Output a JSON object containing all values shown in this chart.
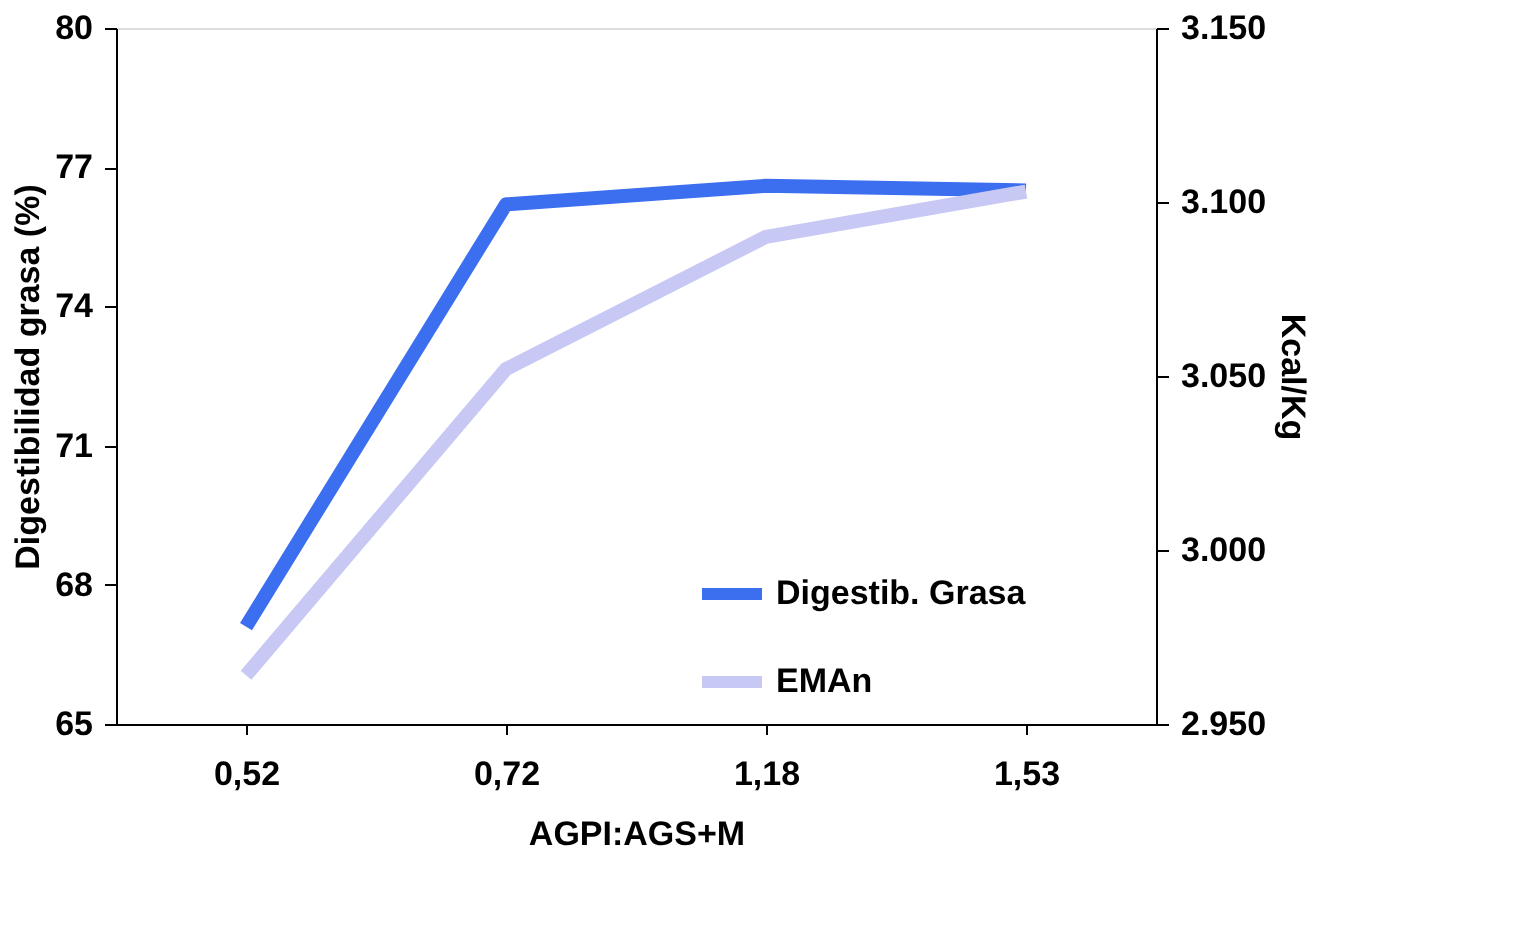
{
  "chart_data": {
    "type": "line",
    "xlabel": "AGPI:AGS+M",
    "ylabel": "Digestibilidad grasa (%)",
    "y2label": "Kcal/Kg",
    "categories": [
      "0,52",
      "0,72",
      "1,18",
      "1,53"
    ],
    "series": [
      {
        "name": "Digestib. Grasa",
        "color": "#3c6ef0",
        "values": [
          67.1,
          76.2,
          76.6,
          76.5
        ]
      },
      {
        "name": "EMAn",
        "color": "#c8c8f5",
        "values": [
          2964,
          3052,
          3090,
          3103
        ],
        "axis": "y2"
      }
    ],
    "ylim": [
      65,
      80
    ],
    "yticks": [
      65,
      68,
      71,
      74,
      77,
      80
    ],
    "y2lim": [
      2950,
      3150
    ],
    "y2ticks": [
      {
        "value": 2950,
        "label": "2.950"
      },
      {
        "value": 3000,
        "label": "3.000"
      },
      {
        "value": 3050,
        "label": "3.050"
      },
      {
        "value": 3100,
        "label": "3.100"
      },
      {
        "value": 3150,
        "label": "3.150"
      }
    ],
    "legend": "bottom right",
    "grid": false,
    "marker": "none",
    "line_style": "solid"
  }
}
